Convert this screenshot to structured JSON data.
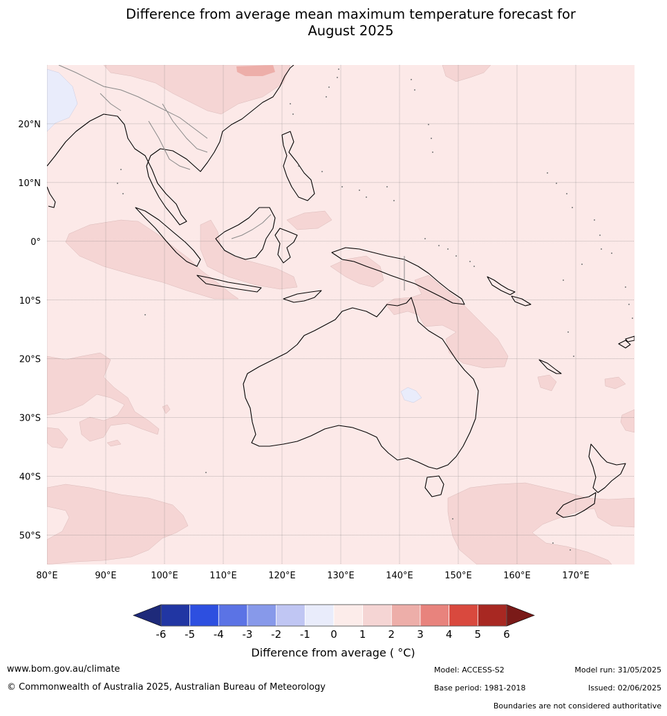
{
  "title_line1": "Difference from average mean maximum temperature forecast for",
  "title_line2": "August 2025",
  "map": {
    "lon_range": [
      80,
      180
    ],
    "lat_range": [
      -55,
      30
    ],
    "lon_ticks": [
      "80°E",
      "90°E",
      "100°E",
      "110°E",
      "120°E",
      "130°E",
      "140°E",
      "150°E",
      "160°E",
      "170°E"
    ],
    "lat_ticks": [
      "20°N",
      "10°N",
      "0°",
      "10°S",
      "20°S",
      "30°S",
      "40°S",
      "50°S"
    ],
    "background_anomaly_range": "0 to 1",
    "colors": {
      "background_0_1": "#fce9e8",
      "pos_1_2": "#f5d5d4",
      "pos_2_3": "#edaea9",
      "neg_0_1": "#e9ecfb",
      "grid": "#777777",
      "coast": "#000000"
    },
    "gridlines": true
  },
  "colorbar": {
    "ticks": [
      "-6",
      "-5",
      "-4",
      "-3",
      "-2",
      "-1",
      "0",
      "1",
      "2",
      "3",
      "4",
      "5",
      "6"
    ],
    "colors": [
      "#2136a3",
      "#2d4fe0",
      "#5b73e5",
      "#8799ea",
      "#c0c6f3",
      "#e9ecfb",
      "#fcecea",
      "#f5d5d4",
      "#edaea9",
      "#e8837d",
      "#d9493e",
      "#a82822"
    ],
    "extend_low_color": "#1e2a7a",
    "extend_high_color": "#7a1a18",
    "label": "Difference from average ( °C)"
  },
  "footer": {
    "website": "www.bom.gov.au/climate",
    "copyright": "© Commonwealth of Australia 2025, Australian Bureau of Meteorology",
    "model": "Model: ACCESS-S2",
    "base_period": "Base period: 1981-2018",
    "model_run": "Model run: 31/05/2025",
    "issued": "Issued: 02/06/2025",
    "disclaimer": "Boundaries are not considered authoritative"
  }
}
